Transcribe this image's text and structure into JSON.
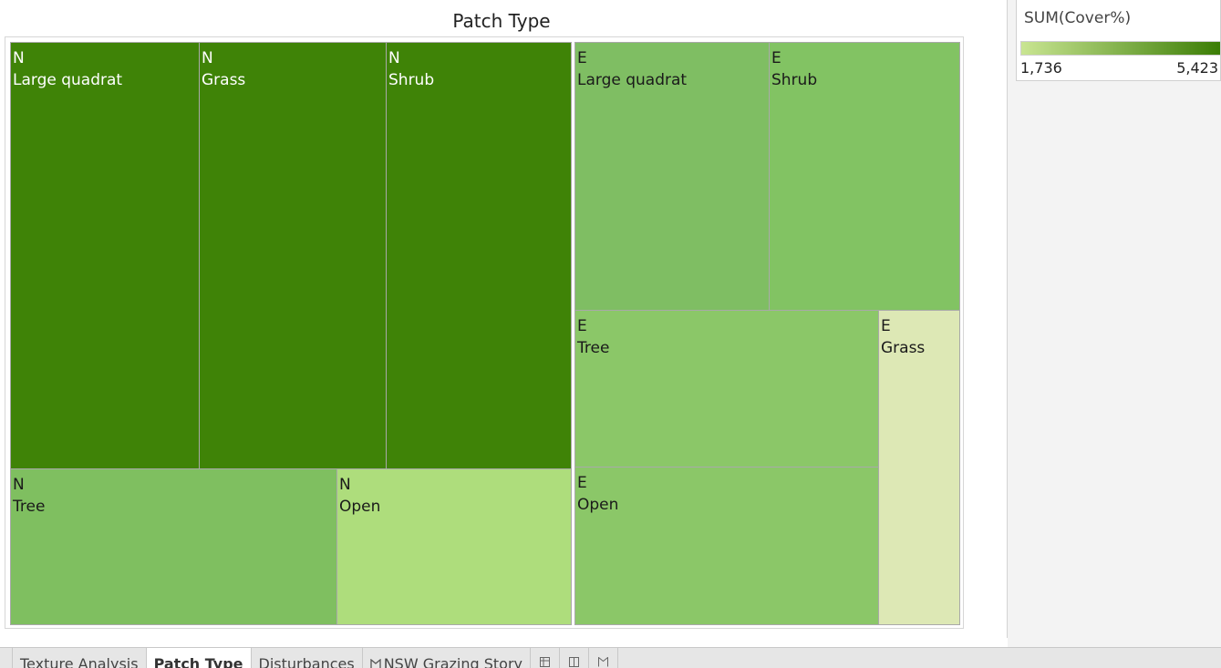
{
  "sheet": {
    "title": "Patch Type"
  },
  "legend": {
    "title": "SUM(Cover%)",
    "min_label": "1,736",
    "max_label": "5,423",
    "min_value": 1736,
    "max_value": 5423,
    "color_low": "#c9e592",
    "color_high": "#3b7d05"
  },
  "tiles": [
    {
      "group": "N",
      "patch": "Large quadrat",
      "color": "#3f8307"
    },
    {
      "group": "N",
      "patch": "Grass",
      "color": "#3f8307"
    },
    {
      "group": "N",
      "patch": "Shrub",
      "color": "#3f8307"
    },
    {
      "group": "N",
      "patch": "Tree",
      "color": "#7fbf60"
    },
    {
      "group": "N",
      "patch": "Open",
      "color": "#aedd7c"
    },
    {
      "group": "E",
      "patch": "Large quadrat",
      "color": "#7fbe63"
    },
    {
      "group": "E",
      "patch": "Shrub",
      "color": "#82c363"
    },
    {
      "group": "E",
      "patch": "Tree",
      "color": "#8bc768"
    },
    {
      "group": "E",
      "patch": "Grass",
      "color": "#dde8b5"
    },
    {
      "group": "E",
      "patch": "Open",
      "color": "#8bc768"
    }
  ],
  "tabs": [
    {
      "label": "Texture Analysis",
      "active": false
    },
    {
      "label": "Patch Type",
      "active": true
    },
    {
      "label": "Disturbances",
      "active": false
    },
    {
      "label": "NSW Grazing Story",
      "active": false,
      "icon": "story-icon"
    }
  ],
  "tab_icons": [
    "new-worksheet-icon",
    "new-dashboard-icon",
    "new-story-icon"
  ]
}
